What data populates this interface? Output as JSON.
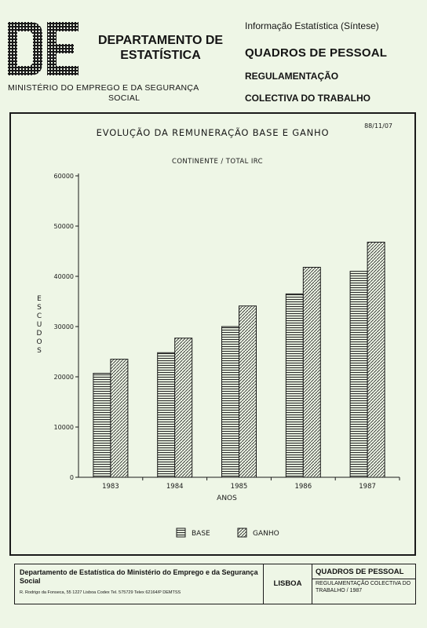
{
  "header": {
    "department": "DEPARTAMENTO DE ESTATÍSTICA",
    "ministry_line1": "MINISTÉRIO DO EMPREGO E DA SEGURANÇA",
    "ministry_line2": "SOCIAL",
    "info_title": "Informação Estatística (Síntese)",
    "publication": "QUADROS DE PESSOAL",
    "sub1": "REGULAMENTAÇÃO",
    "sub2": "COLECTIVA DO TRABALHO"
  },
  "chart_data": {
    "type": "bar",
    "title": "EVOLUÇÃO DA REMUNERAÇÃO BASE E GANHO",
    "subtitle": "CONTINENTE / TOTAL IRC",
    "date": "88/11/07",
    "xlabel": "ANOS",
    "ylabel": "ESCUDOS",
    "categories": [
      "1983",
      "1984",
      "1985",
      "1986",
      "1987"
    ],
    "ylim": [
      0,
      60000
    ],
    "yticks": [
      "0",
      "10000",
      "20000",
      "30000",
      "40000",
      "50000",
      "60000"
    ],
    "series": [
      {
        "name": "BASE",
        "values": [
          20700,
          24800,
          30000,
          36500,
          41000
        ]
      },
      {
        "name": "GANHO",
        "values": [
          23500,
          27700,
          34100,
          41800,
          46800
        ]
      }
    ],
    "legend_position": "bottom-center",
    "grid": false
  },
  "footer": {
    "dept": "Departamento de Estatística do Ministério do Emprego e da Segurança Social",
    "address": "R. Rodrigo da Fonseca, 55  1227 Lisboa Codex  Tel. 575729  Telex 62164/P DEMTSS",
    "city": "LISBOA",
    "publication": "QUADROS DE PESSOAL",
    "sub": "REGULAMENTAÇÃO COLECTIVA DO TRABALHO / 1987"
  }
}
